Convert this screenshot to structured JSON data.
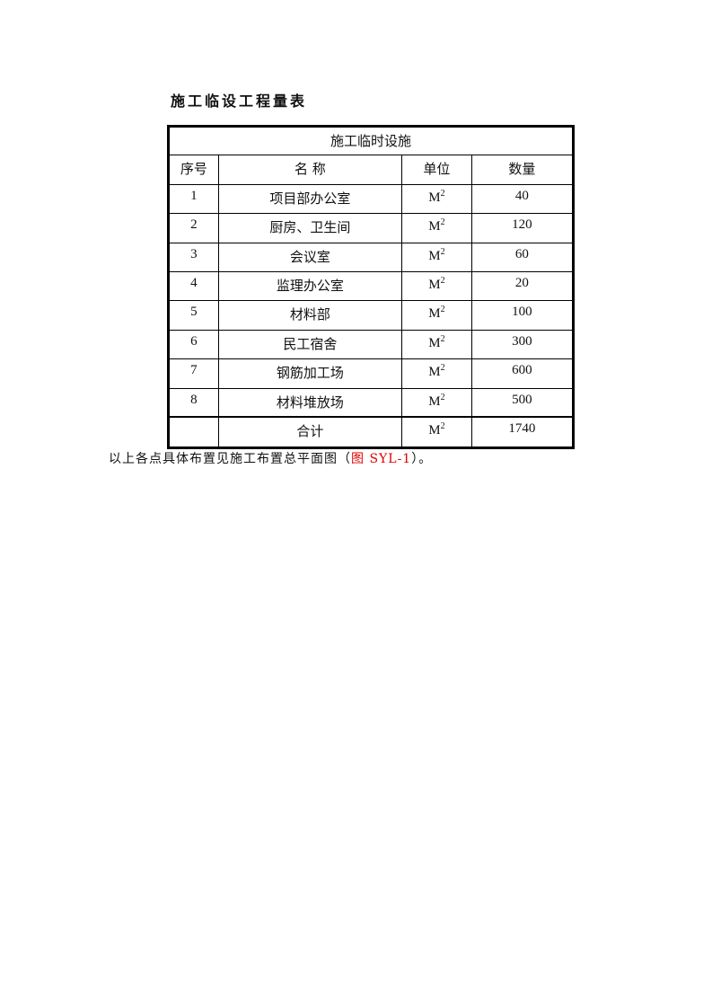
{
  "title": "施工临设工程量表",
  "table": {
    "caption": "施工临时设施",
    "headers": [
      "序号",
      "名 称",
      "单位",
      "数量"
    ],
    "unit_base": "M",
    "unit_sup": "2",
    "rows": [
      {
        "no": "1",
        "name": "项目部办公室",
        "qty": "40"
      },
      {
        "no": "2",
        "name": "厨房、卫生间",
        "qty": "120"
      },
      {
        "no": "3",
        "name": "会议室",
        "qty": "60"
      },
      {
        "no": "4",
        "name": "监理办公室",
        "qty": "20"
      },
      {
        "no": "5",
        "name": "材料部",
        "qty": "100"
      },
      {
        "no": "6",
        "name": "民工宿舍",
        "qty": "300"
      },
      {
        "no": "7",
        "name": "钢筋加工场",
        "qty": "600"
      },
      {
        "no": "8",
        "name": "材料堆放场",
        "qty": "500"
      }
    ],
    "total": {
      "name": "合计",
      "qty": "1740"
    }
  },
  "note": {
    "before": "以上各点具体布置见施工布置总平面图（",
    "link": "图 SYL-1",
    "after": "）。",
    "link_color": "#e00000"
  }
}
